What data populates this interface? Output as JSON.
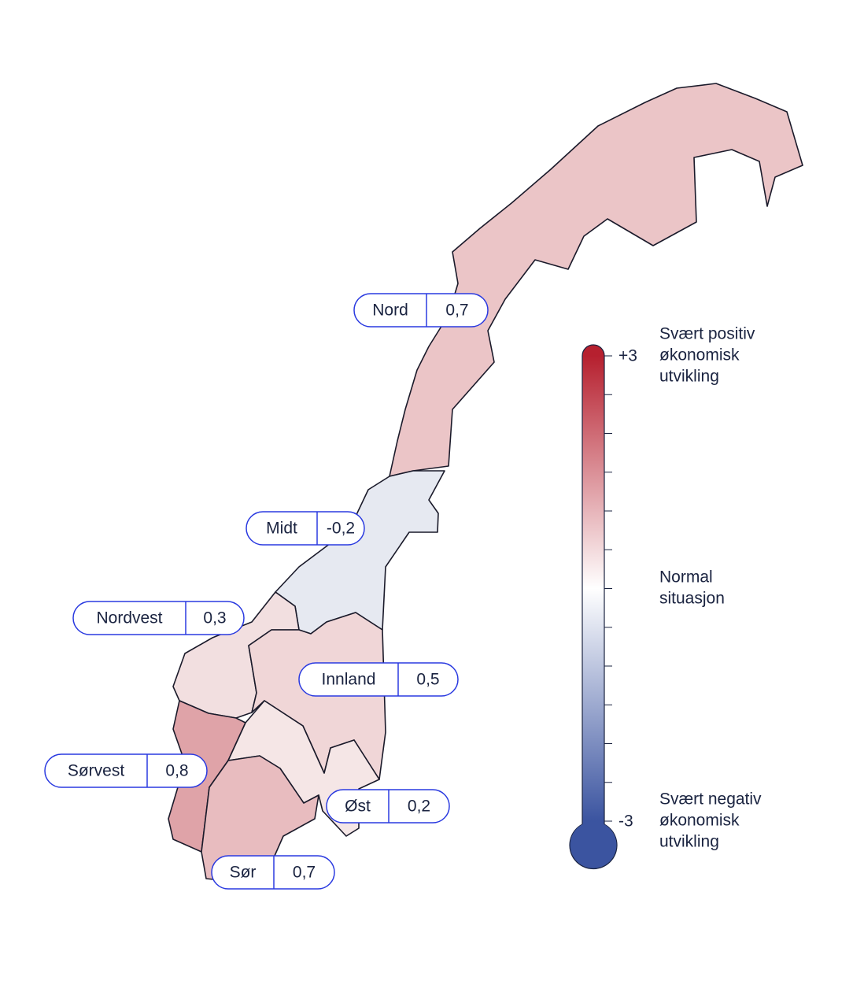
{
  "chart_data": {
    "type": "map",
    "categories": [
      "Nord",
      "Midt",
      "Nordvest",
      "Innland",
      "Sørvest",
      "Øst",
      "Sør"
    ],
    "values": [
      0.7,
      -0.2,
      0.3,
      0.5,
      0.8,
      0.2,
      0.7
    ],
    "value_labels": [
      "0,7",
      "-0,2",
      "0,3",
      "0,5",
      "0,8",
      "0,2",
      "0,7"
    ],
    "colors": [
      "#ebc5c7",
      "#e6e9f1",
      "#f2dfe0",
      "#f0d6d7",
      "#dfa3a8",
      "#f5e6e6",
      "#e8bcbf"
    ],
    "legend": {
      "ylim": [
        -3,
        3
      ],
      "yticks": [
        {
          "value": 3,
          "label": "+3"
        },
        {
          "value": -3,
          "label": "-3"
        }
      ],
      "minor_yticks": [
        2.5,
        2,
        1.5,
        1,
        0.5,
        0,
        -0.5,
        -1,
        -1.5,
        -2,
        -2.5
      ],
      "colors": [
        "#3b54a0",
        "#ffffff",
        "#b6202f"
      ],
      "annotations": [
        {
          "value": 3,
          "lines": [
            "Svært positiv",
            "økonomisk",
            "utvikling"
          ]
        },
        {
          "value": 0,
          "lines": [
            "Normal",
            "situasjon"
          ]
        },
        {
          "value": -3,
          "lines": [
            "Svært negativ",
            "økonomisk",
            "utvikling"
          ]
        }
      ]
    }
  }
}
